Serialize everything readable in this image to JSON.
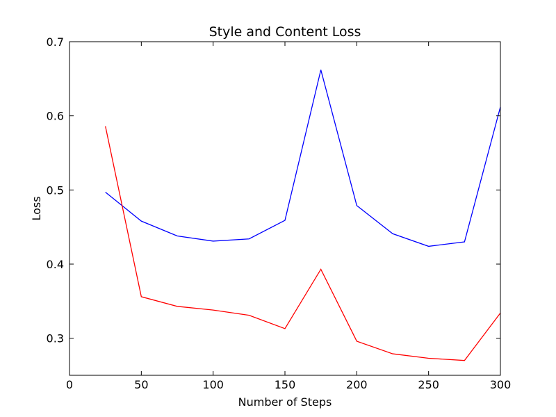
{
  "chart_data": {
    "type": "line",
    "title": "Style and Content Loss",
    "xlabel": "Number of Steps",
    "ylabel": "Loss",
    "xlim": [
      0,
      300
    ],
    "ylim": [
      0.25,
      0.7
    ],
    "xticks": [
      0,
      50,
      100,
      150,
      200,
      250,
      300
    ],
    "xtick_labels": [
      "0",
      "50",
      "100",
      "150",
      "200",
      "250",
      "300"
    ],
    "yticks": [
      0.3,
      0.4,
      0.5,
      0.6,
      0.7
    ],
    "ytick_labels": [
      "0.3",
      "0.4",
      "0.5",
      "0.6",
      "0.7"
    ],
    "grid": false,
    "x": [
      25,
      50,
      75,
      100,
      125,
      150,
      175,
      200,
      225,
      250,
      275,
      300
    ],
    "series": [
      {
        "color": "#0000ff",
        "values": [
          0.497,
          0.458,
          0.438,
          0.431,
          0.434,
          0.459,
          0.662,
          0.479,
          0.441,
          0.424,
          0.43,
          0.612
        ]
      },
      {
        "color": "#ff0000",
        "values": [
          0.586,
          0.356,
          0.343,
          0.338,
          0.331,
          0.313,
          0.393,
          0.296,
          0.279,
          0.273,
          0.27,
          0.334
        ]
      }
    ]
  }
}
